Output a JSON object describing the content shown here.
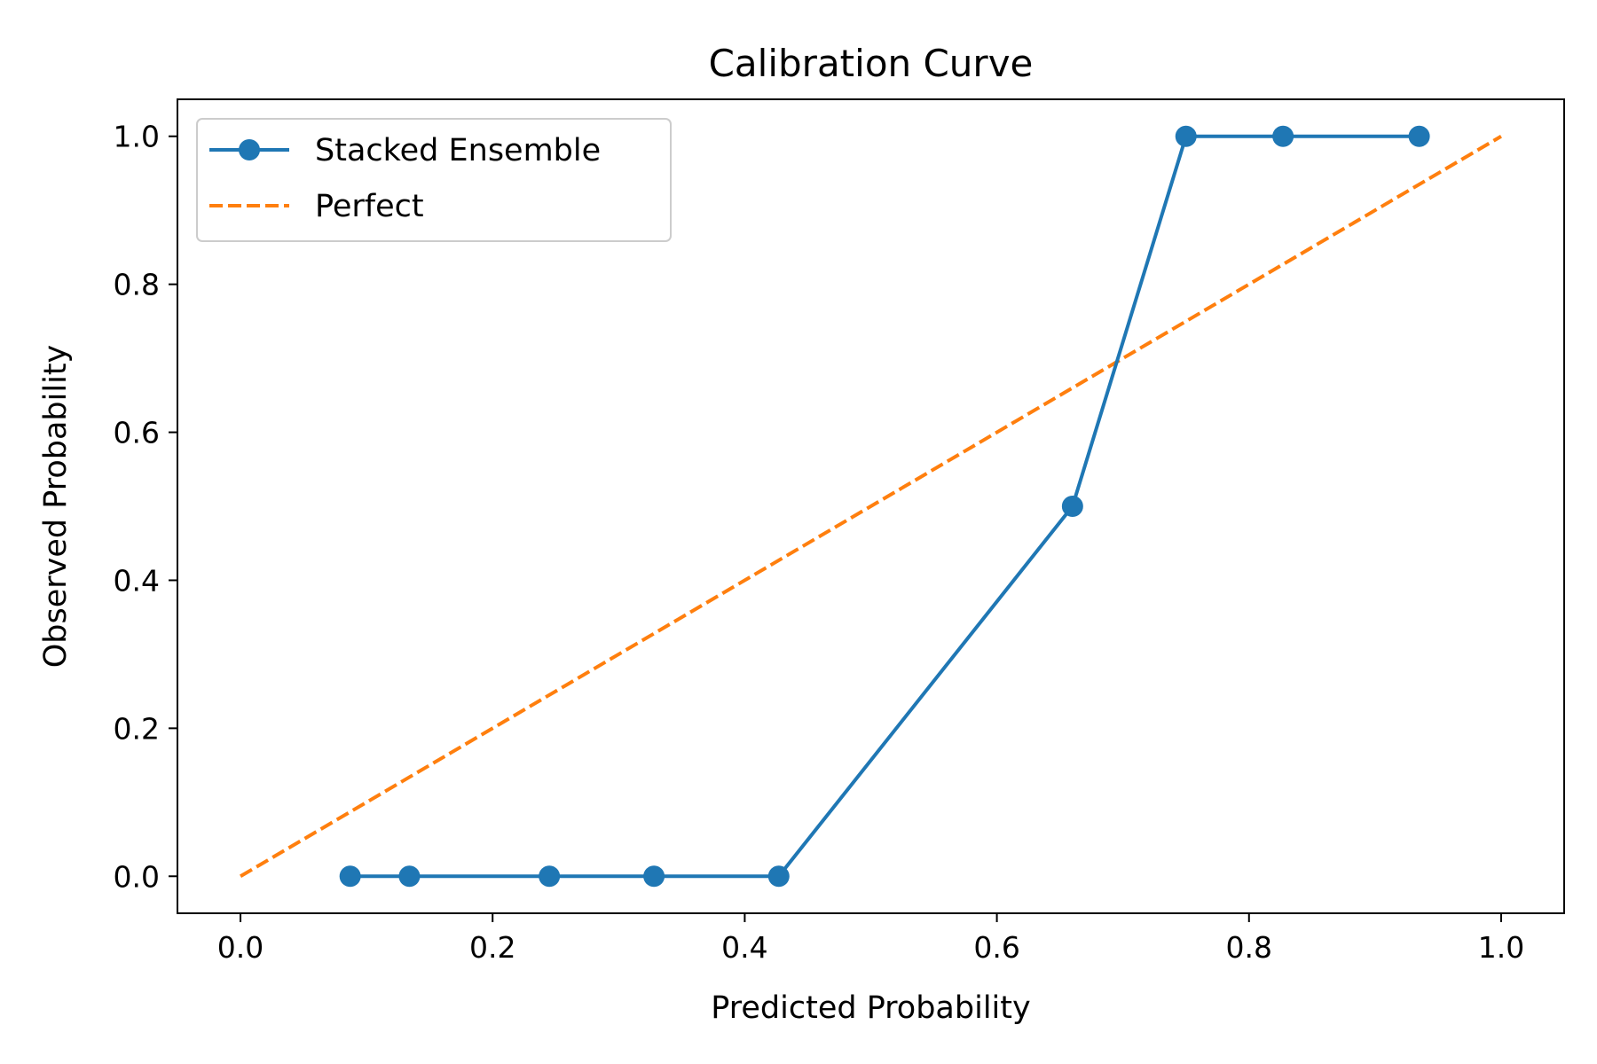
{
  "chart_data": {
    "type": "line",
    "title": "Calibration Curve",
    "xlabel": "Predicted Probability",
    "ylabel": "Observed Probability",
    "xlim": [
      -0.05,
      1.05
    ],
    "ylim": [
      -0.05,
      1.05
    ],
    "xticks": [
      0.0,
      0.2,
      0.4,
      0.6,
      0.8,
      1.0
    ],
    "yticks": [
      0.0,
      0.2,
      0.4,
      0.6,
      0.8,
      1.0
    ],
    "xtick_labels": [
      "0.0",
      "0.2",
      "0.4",
      "0.6",
      "0.8",
      "1.0"
    ],
    "ytick_labels": [
      "0.0",
      "0.2",
      "0.4",
      "0.6",
      "0.8",
      "1.0"
    ],
    "grid": false,
    "legend_position": "top-left",
    "series": [
      {
        "name": "Stacked Ensemble",
        "style": "solid-with-markers",
        "color": "#1f77b4",
        "x": [
          0.087,
          0.134,
          0.245,
          0.328,
          0.427,
          0.66,
          0.75,
          0.827,
          0.935
        ],
        "y": [
          0.0,
          0.0,
          0.0,
          0.0,
          0.0,
          0.5,
          1.0,
          1.0,
          1.0
        ]
      },
      {
        "name": "Perfect",
        "style": "dashed",
        "color": "#ff7f0e",
        "x": [
          0.0,
          1.0
        ],
        "y": [
          0.0,
          1.0
        ]
      }
    ]
  }
}
